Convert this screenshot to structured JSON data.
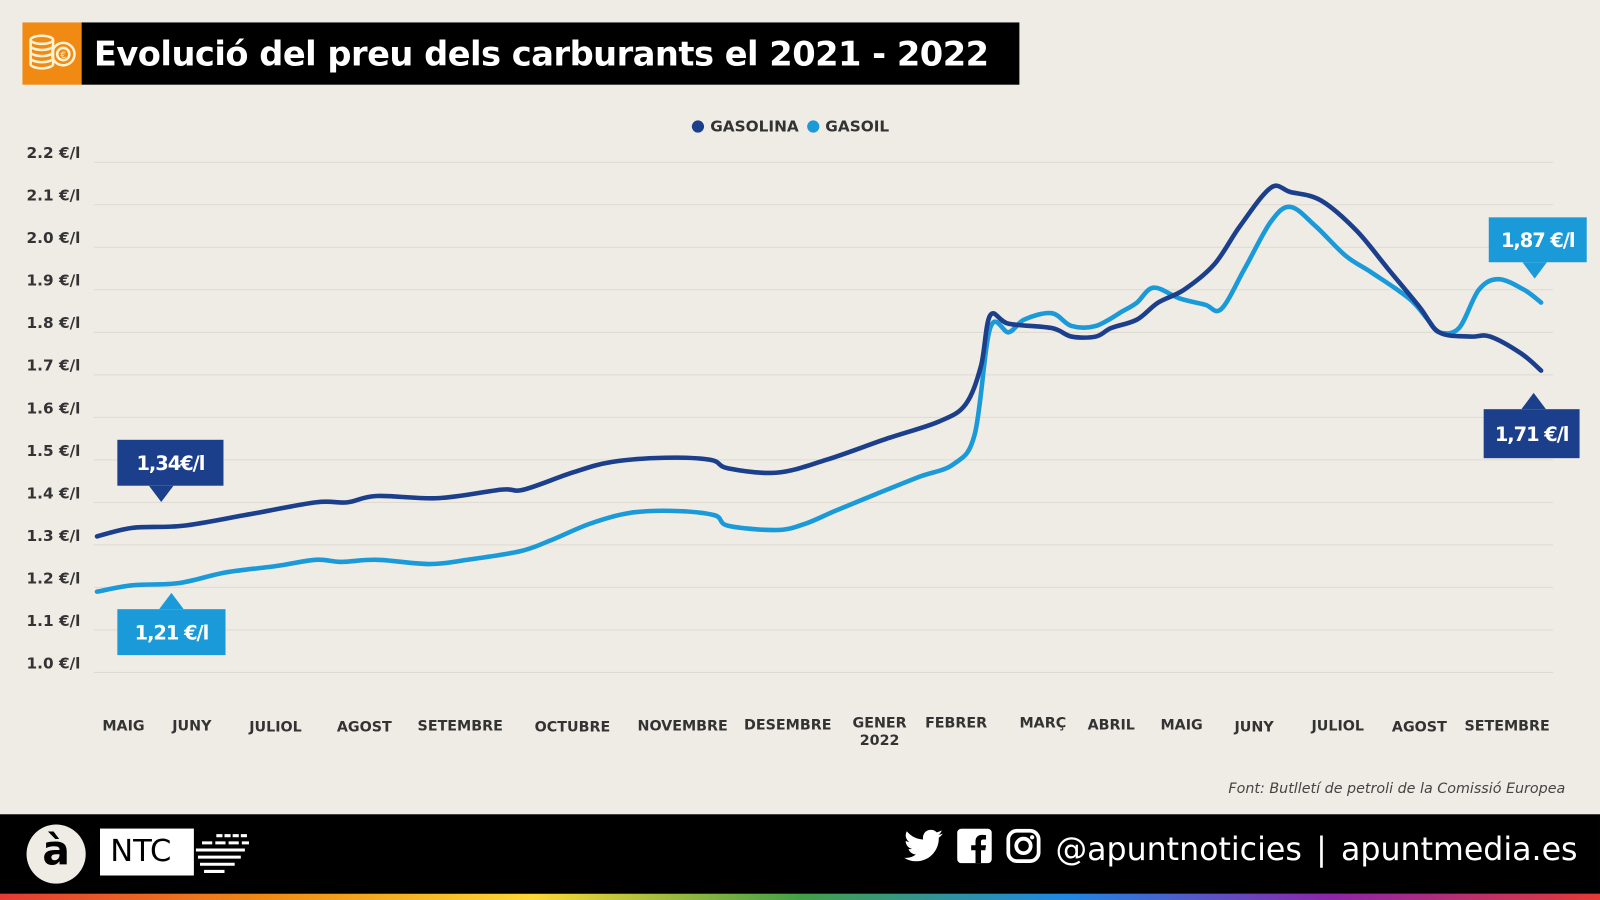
{
  "header": {
    "title": "Evolució del preu dels carburants el 2021 - 2022",
    "icon": "coins-euro-icon",
    "icon_color": "#f08a12"
  },
  "source": "Font: Butlletí de petroli de la Comissió Europea",
  "footer": {
    "logo_letter": "à",
    "brand": "NTC",
    "handle": "@apuntnoticies",
    "separator": "|",
    "site": "apuntmedia.es",
    "icons": [
      "twitter-icon",
      "facebook-icon",
      "instagram-icon"
    ]
  },
  "chart_data": {
    "type": "line",
    "title": "Evolució del preu dels carburants el 2021 - 2022",
    "legend_position": "top",
    "grid": true,
    "ylim": [
      1.0,
      2.2
    ],
    "y_ticks": [
      "2.2 €/l",
      "2.1 €/l",
      "2.0 €/l",
      "1.9 €/l",
      "1.8 €/l",
      "1.7 €/l",
      "1.6 €/l",
      "1.5 €/l",
      "1.4 €/l",
      "1.3 €/l",
      "1.2 €/l",
      "1.1 €/l",
      "1.0 €/l"
    ],
    "x_ticks": [
      {
        "label": "MAIG",
        "date": "2021-05-15"
      },
      {
        "label": "JUNY",
        "date": "2021-06-15"
      },
      {
        "label": "JULIOL",
        "date": "2021-07-15"
      },
      {
        "label": "AGOST",
        "date": "2021-08-15"
      },
      {
        "label": "SETEMBRE",
        "date": "2021-09-15"
      },
      {
        "label": "OCTUBRE",
        "date": "2021-10-15"
      },
      {
        "label": "NOVEMBRE",
        "date": "2021-11-15"
      },
      {
        "label": "DESEMBRE",
        "date": "2021-12-15"
      },
      {
        "label": "GENER",
        "sublabel": "2022",
        "date": "2022-01-15"
      },
      {
        "label": "FEBRER",
        "date": "2022-02-15"
      },
      {
        "label": "MARÇ",
        "date": "2022-03-15"
      },
      {
        "label": "ABRIL",
        "date": "2022-04-15"
      },
      {
        "label": "MAIG",
        "date": "2022-05-15"
      },
      {
        "label": "JUNY",
        "date": "2022-06-15"
      },
      {
        "label": "JULIOL",
        "date": "2022-07-15"
      },
      {
        "label": "AGOST",
        "date": "2022-08-15"
      },
      {
        "label": "SETEMBRE",
        "date": "2022-09-15"
      }
    ],
    "series": [
      {
        "name": "GASOLINA",
        "color": "#1c3f8c",
        "start_label": "1,34€/l",
        "end_label": "1,71 €/l",
        "points": [
          [
            "2021-05-03",
            1.32
          ],
          [
            "2021-05-19",
            1.34
          ],
          [
            "2021-06-11",
            1.345
          ],
          [
            "2021-07-04",
            1.37
          ],
          [
            "2021-07-29",
            1.4
          ],
          [
            "2021-08-09",
            1.4
          ],
          [
            "2021-08-19",
            1.415
          ],
          [
            "2021-09-08",
            1.41
          ],
          [
            "2021-09-26",
            1.43
          ],
          [
            "2021-10-02",
            1.43
          ],
          [
            "2021-10-15",
            1.47
          ],
          [
            "2021-10-26",
            1.495
          ],
          [
            "2021-11-10",
            1.505
          ],
          [
            "2021-11-23",
            1.5
          ],
          [
            "2021-11-28",
            1.48
          ],
          [
            "2021-12-12",
            1.47
          ],
          [
            "2021-12-28",
            1.5
          ],
          [
            "2022-01-18",
            1.55
          ],
          [
            "2022-02-08",
            1.59
          ],
          [
            "2022-02-18",
            1.63
          ],
          [
            "2022-02-23",
            1.72
          ],
          [
            "2022-02-26",
            1.84
          ],
          [
            "2022-03-04",
            1.82
          ],
          [
            "2022-03-19",
            1.81
          ],
          [
            "2022-03-28",
            1.79
          ],
          [
            "2022-04-08",
            1.79
          ],
          [
            "2022-04-15",
            1.81
          ],
          [
            "2022-04-26",
            1.83
          ],
          [
            "2022-05-05",
            1.87
          ],
          [
            "2022-05-16",
            1.9
          ],
          [
            "2022-05-29",
            1.96
          ],
          [
            "2022-06-09",
            2.05
          ],
          [
            "2022-06-21",
            2.14
          ],
          [
            "2022-06-28",
            2.13
          ],
          [
            "2022-07-09",
            2.11
          ],
          [
            "2022-07-22",
            2.04
          ],
          [
            "2022-08-03",
            1.95
          ],
          [
            "2022-08-15",
            1.86
          ],
          [
            "2022-08-22",
            1.8
          ],
          [
            "2022-09-02",
            1.79
          ],
          [
            "2022-09-09",
            1.79
          ],
          [
            "2022-09-20",
            1.75
          ],
          [
            "2022-09-27",
            1.71
          ]
        ]
      },
      {
        "name": "GASOIL",
        "color": "#1a9ad8",
        "start_label": "1,21 €/l",
        "end_label": "1,87 €/l",
        "points": [
          [
            "2021-05-03",
            1.19
          ],
          [
            "2021-05-19",
            1.205
          ],
          [
            "2021-06-09",
            1.21
          ],
          [
            "2021-06-27",
            1.235
          ],
          [
            "2021-07-15",
            1.25
          ],
          [
            "2021-07-29",
            1.265
          ],
          [
            "2021-08-07",
            1.26
          ],
          [
            "2021-08-19",
            1.265
          ],
          [
            "2021-09-05",
            1.255
          ],
          [
            "2021-09-17",
            1.265
          ],
          [
            "2021-10-01",
            1.285
          ],
          [
            "2021-10-09",
            1.31
          ],
          [
            "2021-10-20",
            1.35
          ],
          [
            "2021-10-31",
            1.375
          ],
          [
            "2021-11-12",
            1.38
          ],
          [
            "2021-11-24",
            1.37
          ],
          [
            "2021-11-28",
            1.345
          ],
          [
            "2021-12-12",
            1.335
          ],
          [
            "2021-12-21",
            1.35
          ],
          [
            "2021-12-31",
            1.38
          ],
          [
            "2022-01-14",
            1.42
          ],
          [
            "2022-01-31",
            1.46
          ],
          [
            "2022-02-14",
            1.49
          ],
          [
            "2022-02-21",
            1.56
          ],
          [
            "2022-02-26",
            1.81
          ],
          [
            "2022-03-04",
            1.8
          ],
          [
            "2022-03-09",
            1.83
          ],
          [
            "2022-03-19",
            1.845
          ],
          [
            "2022-03-28",
            1.815
          ],
          [
            "2022-04-08",
            1.815
          ],
          [
            "2022-04-20",
            1.85
          ],
          [
            "2022-04-26",
            1.87
          ],
          [
            "2022-05-03",
            1.905
          ],
          [
            "2022-05-14",
            1.88
          ],
          [
            "2022-05-25",
            1.865
          ],
          [
            "2022-06-01",
            1.855
          ],
          [
            "2022-06-11",
            1.95
          ],
          [
            "2022-06-21",
            2.06
          ],
          [
            "2022-06-28",
            2.095
          ],
          [
            "2022-07-07",
            2.05
          ],
          [
            "2022-07-18",
            1.98
          ],
          [
            "2022-07-28",
            1.94
          ],
          [
            "2022-08-11",
            1.88
          ],
          [
            "2022-08-18",
            1.83
          ],
          [
            "2022-08-22",
            1.8
          ],
          [
            "2022-08-29",
            1.81
          ],
          [
            "2022-09-05",
            1.9
          ],
          [
            "2022-09-12",
            1.925
          ],
          [
            "2022-09-21",
            1.9
          ],
          [
            "2022-09-27",
            1.87
          ]
        ]
      }
    ]
  }
}
